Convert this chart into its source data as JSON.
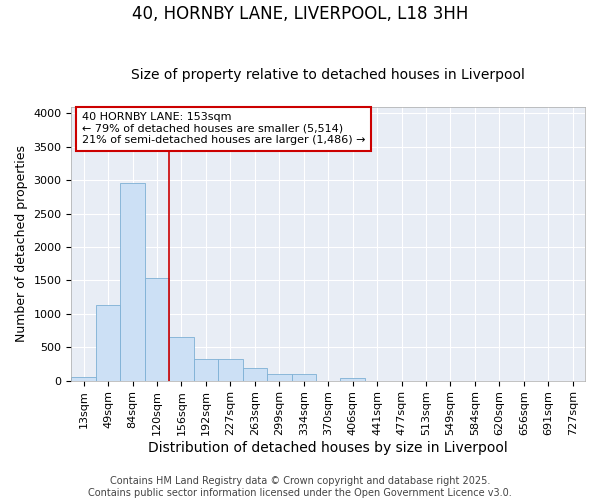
{
  "title": "40, HORNBY LANE, LIVERPOOL, L18 3HH",
  "subtitle": "Size of property relative to detached houses in Liverpool",
  "xlabel": "Distribution of detached houses by size in Liverpool",
  "ylabel": "Number of detached properties",
  "bar_labels": [
    "13sqm",
    "49sqm",
    "84sqm",
    "120sqm",
    "156sqm",
    "192sqm",
    "227sqm",
    "263sqm",
    "299sqm",
    "334sqm",
    "370sqm",
    "406sqm",
    "441sqm",
    "477sqm",
    "513sqm",
    "549sqm",
    "584sqm",
    "620sqm",
    "656sqm",
    "691sqm",
    "727sqm"
  ],
  "bar_values": [
    50,
    1130,
    2960,
    1540,
    660,
    320,
    320,
    195,
    100,
    100,
    0,
    35,
    0,
    0,
    0,
    0,
    0,
    0,
    0,
    0,
    0
  ],
  "bar_color": "#cce0f5",
  "bar_edge_color": "#7db0d4",
  "vline_x": 3.5,
  "vline_color": "#cc0000",
  "annotation_text": "40 HORNBY LANE: 153sqm\n← 79% of detached houses are smaller (5,514)\n21% of semi-detached houses are larger (1,486) →",
  "annotation_box_color": "#cc0000",
  "annotation_text_color": "#000000",
  "ylim": [
    0,
    4100
  ],
  "yticks": [
    0,
    500,
    1000,
    1500,
    2000,
    2500,
    3000,
    3500,
    4000
  ],
  "fig_bg_color": "#ffffff",
  "plot_bg_color": "#e8edf5",
  "grid_color": "#ffffff",
  "footer": "Contains HM Land Registry data © Crown copyright and database right 2025.\nContains public sector information licensed under the Open Government Licence v3.0.",
  "title_fontsize": 12,
  "subtitle_fontsize": 10,
  "xlabel_fontsize": 10,
  "ylabel_fontsize": 9,
  "tick_fontsize": 8,
  "annotation_fontsize": 8,
  "footer_fontsize": 7
}
